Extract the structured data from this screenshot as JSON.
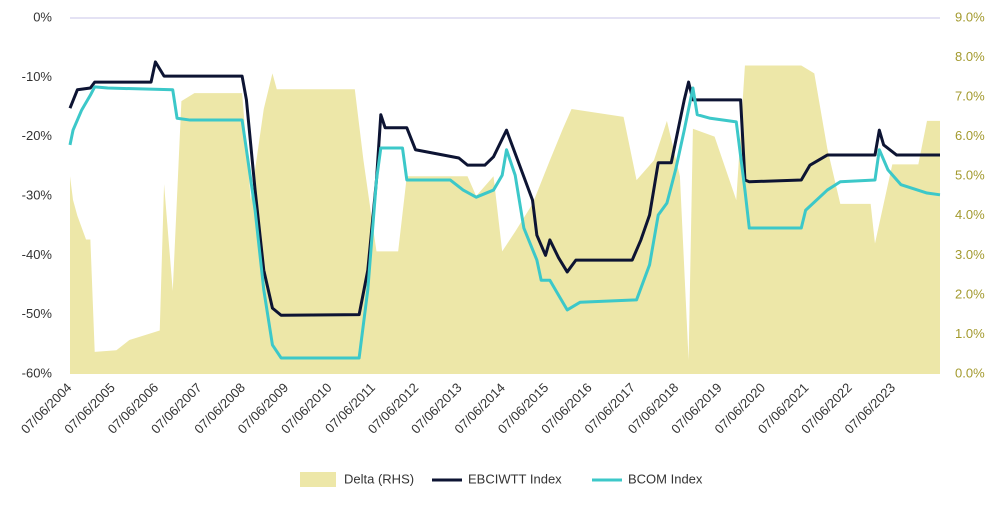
{
  "chart_data": {
    "type": "line",
    "xlim": [
      2004.43,
      2024.5
    ],
    "xticks": [
      {
        "value": 2004.43,
        "label": "07/06/2004"
      },
      {
        "value": 2005.43,
        "label": "07/06/2005"
      },
      {
        "value": 2006.43,
        "label": "07/06/2006"
      },
      {
        "value": 2007.43,
        "label": "07/06/2007"
      },
      {
        "value": 2008.43,
        "label": "07/06/2008"
      },
      {
        "value": 2009.43,
        "label": "07/06/2009"
      },
      {
        "value": 2010.43,
        "label": "07/06/2010"
      },
      {
        "value": 2011.43,
        "label": "07/06/2011"
      },
      {
        "value": 2012.43,
        "label": "07/06/2012"
      },
      {
        "value": 2013.43,
        "label": "07/06/2013"
      },
      {
        "value": 2014.43,
        "label": "07/06/2014"
      },
      {
        "value": 2015.43,
        "label": "07/06/2015"
      },
      {
        "value": 2016.43,
        "label": "07/06/2016"
      },
      {
        "value": 2017.43,
        "label": "07/06/2017"
      },
      {
        "value": 2018.43,
        "label": "07/06/2018"
      },
      {
        "value": 2019.43,
        "label": "07/06/2019"
      },
      {
        "value": 2020.43,
        "label": "07/06/2020"
      },
      {
        "value": 2021.43,
        "label": "07/06/2021"
      },
      {
        "value": 2022.43,
        "label": "07/06/2022"
      },
      {
        "value": 2023.43,
        "label": "07/06/2023"
      }
    ],
    "ylim": [
      -60,
      0
    ],
    "yticks": [
      {
        "value": 0,
        "label": "0%"
      },
      {
        "value": -10,
        "label": "-10%"
      },
      {
        "value": -20,
        "label": "-20%"
      },
      {
        "value": -30,
        "label": "-30%"
      },
      {
        "value": -40,
        "label": "-40%"
      },
      {
        "value": -50,
        "label": "-50%"
      },
      {
        "value": -60,
        "label": "-60%"
      }
    ],
    "y2lim": [
      0,
      9
    ],
    "y2ticks": [
      {
        "value": 0,
        "label": "0.0%"
      },
      {
        "value": 1,
        "label": "1.0%"
      },
      {
        "value": 2,
        "label": "2.0%"
      },
      {
        "value": 3,
        "label": "3.0%"
      },
      {
        "value": 4,
        "label": "4.0%"
      },
      {
        "value": 5,
        "label": "5.0%"
      },
      {
        "value": 6,
        "label": "6.0%"
      },
      {
        "value": 7,
        "label": "7.0%"
      },
      {
        "value": 8,
        "label": "8.0%"
      },
      {
        "value": 9,
        "label": "9.0%"
      }
    ],
    "series": [
      {
        "name": "Delta (RHS)",
        "type": "area",
        "axis": "y2",
        "color": "#ede7a8",
        "x": [
          2004.43,
          2004.5,
          2004.6,
          2004.8,
          2004.9,
          2005.0,
          2005.5,
          2005.8,
          2006.5,
          2006.6,
          2006.8,
          2007.0,
          2007.3,
          2008.4,
          2008.6,
          2008.9,
          2009.1,
          2009.2,
          2011.0,
          2011.2,
          2011.5,
          2012.0,
          2012.2,
          2013.6,
          2013.8,
          2014.2,
          2014.4,
          2014.7,
          2015.1,
          2015.5,
          2015.8,
          2016.0,
          2017.2,
          2017.5,
          2017.9,
          2018.2,
          2018.5,
          2018.7,
          2018.8,
          2019.3,
          2019.8,
          2020.0,
          2021.3,
          2021.6,
          2021.9,
          2022.2,
          2022.9,
          2023.0,
          2023.4,
          2024.0,
          2024.2,
          2024.5
        ],
        "values": [
          5.0,
          4.4,
          4.0,
          3.4,
          3.4,
          0.56,
          0.6,
          0.86,
          1.1,
          4.8,
          2.1,
          6.9,
          7.1,
          7.1,
          4.4,
          6.7,
          7.6,
          7.2,
          7.2,
          5.4,
          3.1,
          3.1,
          5.0,
          5.0,
          4.5,
          5.0,
          3.1,
          3.6,
          4.3,
          5.4,
          6.2,
          6.7,
          6.5,
          4.9,
          5.4,
          6.4,
          5.0,
          0.35,
          6.2,
          6.0,
          4.4,
          7.8,
          7.8,
          7.6,
          5.7,
          4.3,
          4.3,
          3.3,
          5.3,
          5.3,
          6.4,
          6.4
        ]
      },
      {
        "name": "EBCIWTT Index",
        "type": "line",
        "color": "#0d1433",
        "x": [
          2004.43,
          2004.6,
          2004.9,
          2005.0,
          2006.3,
          2006.4,
          2006.6,
          2008.4,
          2008.5,
          2008.7,
          2008.9,
          2009.1,
          2009.3,
          2011.1,
          2011.3,
          2011.5,
          2011.6,
          2011.7,
          2012.2,
          2012.4,
          2013.4,
          2013.6,
          2014.0,
          2014.2,
          2014.5,
          2014.8,
          2015.1,
          2015.2,
          2015.4,
          2015.5,
          2015.7,
          2015.9,
          2016.1,
          2017.4,
          2017.6,
          2017.8,
          2018.0,
          2018.3,
          2018.6,
          2018.7,
          2018.8,
          2019.9,
          2020.0,
          2020.1,
          2021.3,
          2021.5,
          2021.9,
          2023.0,
          2023.1,
          2023.2,
          2023.5,
          2024.5
        ],
        "values": [
          -15.2,
          -12.1,
          -11.8,
          -10.8,
          -10.8,
          -7.4,
          -9.8,
          -9.8,
          -13.8,
          -29,
          -42.5,
          -48.9,
          -50.1,
          -50,
          -42.5,
          -27.3,
          -16.3,
          -18.5,
          -18.5,
          -22.2,
          -23.6,
          -24.8,
          -24.8,
          -23.4,
          -18.9,
          -24.8,
          -30.7,
          -36.6,
          -40,
          -37.4,
          -40.4,
          -42.8,
          -40.8,
          -40.8,
          -37.4,
          -33.2,
          -24.4,
          -24.4,
          -13.8,
          -10.8,
          -13.8,
          -13.8,
          -27.3,
          -27.6,
          -27.3,
          -24.8,
          -23.1,
          -23.1,
          -18.9,
          -21.4,
          -23.1,
          -23.1
        ]
      },
      {
        "name": "BCOM Index",
        "type": "line",
        "color": "#3cc8c9",
        "x": [
          2004.43,
          2004.5,
          2004.7,
          2004.9,
          2005.0,
          2005.3,
          2006.8,
          2006.9,
          2007.2,
          2008.4,
          2008.5,
          2008.7,
          2008.9,
          2009.1,
          2009.3,
          2011.1,
          2011.3,
          2011.5,
          2011.6,
          2012.1,
          2012.2,
          2013.2,
          2013.5,
          2013.8,
          2014.2,
          2014.4,
          2014.5,
          2014.7,
          2014.9,
          2015.2,
          2015.3,
          2015.5,
          2015.7,
          2015.9,
          2016.2,
          2017.5,
          2017.8,
          2018.0,
          2018.2,
          2018.4,
          2018.6,
          2018.8,
          2018.9,
          2019.2,
          2019.8,
          2020.0,
          2020.1,
          2021.3,
          2021.4,
          2021.9,
          2022.2,
          2023.0,
          2023.1,
          2023.3,
          2023.6,
          2024.2,
          2024.5
        ],
        "values": [
          -21.4,
          -18.9,
          -15.5,
          -13,
          -11.6,
          -11.8,
          -12.1,
          -16.9,
          -17.2,
          -17.2,
          -22.2,
          -32.4,
          -45.8,
          -55.1,
          -57.3,
          -57.3,
          -45.8,
          -27.3,
          -21.9,
          -21.9,
          -27.3,
          -27.3,
          -29,
          -30.2,
          -29,
          -26.5,
          -22.2,
          -26.5,
          -35.4,
          -40.8,
          -44.2,
          -44.2,
          -46.7,
          -49.2,
          -47.9,
          -47.5,
          -41.6,
          -33.2,
          -31.2,
          -25.6,
          -18.9,
          -11.8,
          -16.3,
          -16.9,
          -17.5,
          -29,
          -35.4,
          -35.4,
          -32.4,
          -29,
          -27.6,
          -27.3,
          -22.2,
          -25.6,
          -28.1,
          -29.5,
          -29.8
        ]
      }
    ]
  }
}
